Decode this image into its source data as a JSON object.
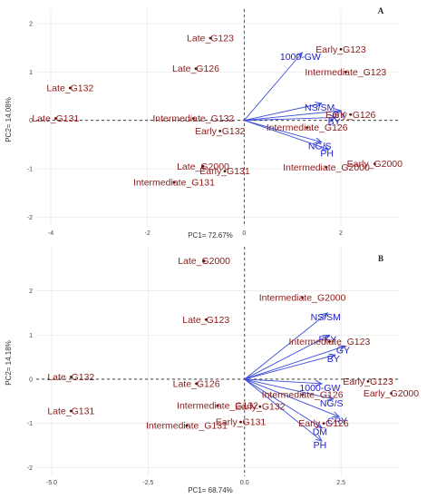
{
  "colors": {
    "observation_text": "#8b1a1a",
    "observation_point": "#5a1010",
    "arrow": "#3b4fd8",
    "variable_text": "#1c1cc8",
    "grid": "#e6e6e6",
    "zero_line": "#222222"
  },
  "chart_data": [
    {
      "type": "scatter",
      "subtype": "biplot",
      "panel_label": "A",
      "xlabel": "PC1= 72.67%",
      "ylabel": "PC2= 14.08%",
      "xlim": [
        -4.3,
        3.2
      ],
      "ylim": [
        -2.2,
        2.3
      ],
      "x_ticks": [
        -4,
        -2,
        0,
        2
      ],
      "y_ticks": [
        -2,
        -1,
        0,
        1,
        2
      ],
      "grid": true,
      "observations": [
        {
          "label": "Late_G123",
          "x": -0.7,
          "y": 1.7
        },
        {
          "label": "Late_G126",
          "x": -1.0,
          "y": 1.07
        },
        {
          "label": "Late_G132",
          "x": -3.6,
          "y": 0.67
        },
        {
          "label": "Late_G131",
          "x": -3.9,
          "y": 0.04
        },
        {
          "label": "Intermediate_G132",
          "x": -1.05,
          "y": 0.04
        },
        {
          "label": "Early_G132",
          "x": -0.5,
          "y": -0.22
        },
        {
          "label": "Late_G2000",
          "x": -0.85,
          "y": -0.95
        },
        {
          "label": "Early_G131",
          "x": -0.4,
          "y": -1.05
        },
        {
          "label": "Intermediate_G131",
          "x": -1.45,
          "y": -1.28
        },
        {
          "label": "Early_G123",
          "x": 2.0,
          "y": 1.47
        },
        {
          "label": "Intermediate_G123",
          "x": 2.1,
          "y": 1.0
        },
        {
          "label": "Early_G126",
          "x": 2.2,
          "y": 0.12
        },
        {
          "label": "Intermediate_G126",
          "x": 1.3,
          "y": -0.15
        },
        {
          "label": "Early_G2000",
          "x": 2.7,
          "y": -0.9
        },
        {
          "label": "Intermediate_G2000",
          "x": 1.7,
          "y": -0.97
        }
      ],
      "variables": [
        {
          "label": "1000-GW",
          "x": 1.2,
          "y": 1.4
        },
        {
          "label": "NS/SM",
          "x": 1.6,
          "y": 0.35
        },
        {
          "label": "GY",
          "x": 2.0,
          "y": 0.2
        },
        {
          "label": "BY",
          "x": 1.9,
          "y": 0.06
        },
        {
          "label": "NG/S",
          "x": 1.6,
          "y": -0.45
        },
        {
          "label": "PH",
          "x": 1.75,
          "y": -0.6
        }
      ]
    },
    {
      "type": "scatter",
      "subtype": "biplot",
      "panel_label": "B",
      "xlabel": "PC1= 68.74%",
      "ylabel": "PC2= 14.18%",
      "xlim": [
        -5.4,
        4.0
      ],
      "ylim": [
        -2.2,
        3.0
      ],
      "x_ticks": [
        -5.0,
        -2.5,
        0.0,
        2.5
      ],
      "y_ticks": [
        -2,
        -1,
        0,
        1,
        2
      ],
      "grid": true,
      "observations": [
        {
          "label": "Late_G2000",
          "x": -1.05,
          "y": 2.68
        },
        {
          "label": "Late_G123",
          "x": -1.0,
          "y": 1.35
        },
        {
          "label": "Late_G132",
          "x": -4.5,
          "y": 0.05
        },
        {
          "label": "Late_G126",
          "x": -1.25,
          "y": -0.1
        },
        {
          "label": "Late_G131",
          "x": -4.5,
          "y": -0.72
        },
        {
          "label": "Intermediate_G132",
          "x": -0.7,
          "y": -0.6
        },
        {
          "label": "Intermediate_G131",
          "x": -1.5,
          "y": -1.05
        },
        {
          "label": "Early_G131",
          "x": -0.1,
          "y": -0.97
        },
        {
          "label": "Early_G132",
          "x": 0.4,
          "y": -0.62
        },
        {
          "label": "Intermediate_G2000",
          "x": 1.5,
          "y": 1.85
        },
        {
          "label": "Intermediate_G123",
          "x": 2.2,
          "y": 0.85
        },
        {
          "label": "Intermediate_G126",
          "x": 1.5,
          "y": -0.35
        },
        {
          "label": "Early_G126",
          "x": 2.05,
          "y": -1.0
        },
        {
          "label": "Early_G123",
          "x": 3.2,
          "y": -0.05
        },
        {
          "label": "Early_G2000",
          "x": 3.8,
          "y": -0.32
        }
      ],
      "variables": [
        {
          "label": "NS/SM",
          "x": 2.15,
          "y": 1.5
        },
        {
          "label": "FFY",
          "x": 2.2,
          "y": 1.0
        },
        {
          "label": "GY",
          "x": 2.6,
          "y": 0.75
        },
        {
          "label": "BY",
          "x": 2.35,
          "y": 0.55
        },
        {
          "label": "1000-GW",
          "x": 2.0,
          "y": -0.1
        },
        {
          "label": "NG/S",
          "x": 2.3,
          "y": -0.45
        },
        {
          "label": "CRY",
          "x": 2.45,
          "y": -0.85
        },
        {
          "label": "DM",
          "x": 2.0,
          "y": -1.1
        },
        {
          "label": "PH",
          "x": 2.0,
          "y": -1.4
        }
      ]
    }
  ]
}
